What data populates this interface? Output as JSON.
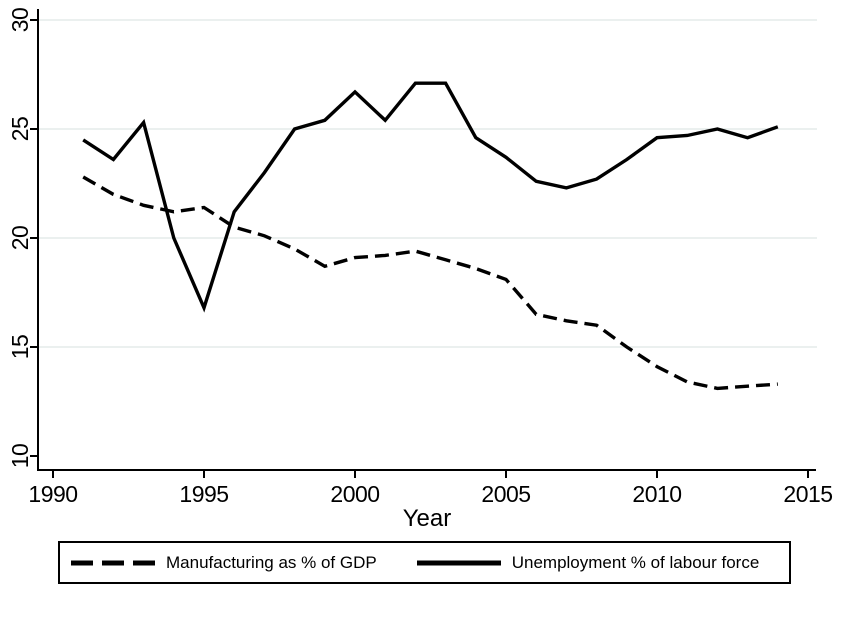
{
  "figure": {
    "background": "#ffffff"
  },
  "chart_data": {
    "type": "line",
    "title": "",
    "xlabel": "Year",
    "ylabel": "",
    "grid": "horizontal-light",
    "legend_position": "bottom-box",
    "line_color": "#000000",
    "grid_color": "#ebf0ef",
    "xlim": [
      1989.5,
      2015.3
    ],
    "ylim": [
      9.4,
      30.5
    ],
    "x_ticks": [
      1990,
      1995,
      2000,
      2005,
      2010,
      2015
    ],
    "y_ticks": [
      10,
      15,
      20,
      25,
      30
    ],
    "y_gridlines": [
      15,
      20,
      25,
      30
    ],
    "x": [
      1991,
      1992,
      1993,
      1994,
      1995,
      1996,
      1997,
      1998,
      1999,
      2000,
      2001,
      2002,
      2003,
      2004,
      2005,
      2006,
      2007,
      2008,
      2009,
      2010,
      2011,
      2012,
      2013,
      2014
    ],
    "series": [
      {
        "name": "Manufacturing as % of GDP",
        "line_style": "dashed",
        "values": [
          22.8,
          22.0,
          21.5,
          21.2,
          21.4,
          20.5,
          20.1,
          19.5,
          18.7,
          19.1,
          19.2,
          19.4,
          19.0,
          18.6,
          18.1,
          16.5,
          16.2,
          16.0,
          15.0,
          14.1,
          13.4,
          13.1,
          13.2,
          13.3
        ]
      },
      {
        "name": "Unemployment % of labour force",
        "line_style": "solid",
        "values": [
          24.5,
          23.6,
          25.3,
          20.0,
          16.8,
          21.2,
          23.0,
          25.0,
          25.4,
          26.7,
          25.4,
          27.1,
          27.1,
          24.6,
          23.7,
          22.6,
          22.3,
          22.7,
          23.6,
          24.6,
          24.7,
          25.0,
          24.6,
          25.1
        ]
      }
    ]
  }
}
